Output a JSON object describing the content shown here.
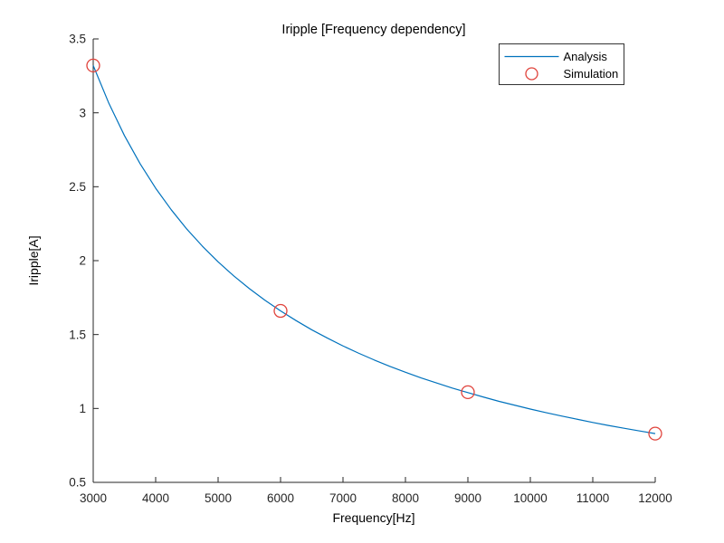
{
  "chart_data": {
    "type": "line",
    "title": "Iripple [Frequency dependency]",
    "xlabel": "Frequency[Hz]",
    "ylabel": "Iripple[A]",
    "xlim": [
      3000,
      12000
    ],
    "ylim": [
      0.5,
      3.5
    ],
    "grid": false,
    "background": "#ffffff",
    "axis_color": "#262626",
    "xticks": [
      3000,
      4000,
      5000,
      6000,
      7000,
      8000,
      9000,
      10000,
      11000,
      12000
    ],
    "xtick_labels": [
      "3000",
      "4000",
      "5000",
      "6000",
      "7000",
      "8000",
      "9000",
      "10000",
      "11000",
      "12000"
    ],
    "yticks": [
      0.5,
      1,
      1.5,
      2,
      2.5,
      3,
      3.5
    ],
    "ytick_labels": [
      "0.5",
      "1",
      "1.5",
      "2",
      "2.5",
      "3",
      "3.5"
    ],
    "legend": {
      "position": "top-right",
      "border_color": "#333333",
      "background": "#ffffff",
      "entries": [
        {
          "label": "Analysis",
          "type": "line",
          "color": "#0072BD"
        },
        {
          "label": "Simulation",
          "type": "circle",
          "color": "#E0433C"
        }
      ]
    },
    "series": [
      {
        "name": "Analysis",
        "type": "line",
        "color": "#0072BD",
        "x": [
          3000,
          3250,
          3500,
          3750,
          4000,
          4250,
          4500,
          4750,
          5000,
          5250,
          5500,
          5750,
          6000,
          6250,
          6500,
          6750,
          7000,
          7250,
          7500,
          7750,
          8000,
          8250,
          8500,
          8750,
          9000,
          9250,
          9500,
          9750,
          10000,
          10250,
          10500,
          10750,
          11000,
          11250,
          11500,
          11750,
          12000
        ],
        "y": [
          3.32,
          3.065,
          2.846,
          2.656,
          2.49,
          2.344,
          2.213,
          2.097,
          1.992,
          1.897,
          1.811,
          1.732,
          1.66,
          1.594,
          1.532,
          1.476,
          1.423,
          1.374,
          1.328,
          1.285,
          1.245,
          1.207,
          1.172,
          1.138,
          1.107,
          1.077,
          1.048,
          1.022,
          0.996,
          0.972,
          0.949,
          0.927,
          0.905,
          0.885,
          0.866,
          0.848,
          0.83
        ]
      },
      {
        "name": "Simulation",
        "type": "scatter",
        "marker": "circle",
        "color": "#E0433C",
        "x": [
          3000,
          6000,
          9000,
          12000
        ],
        "y": [
          3.32,
          1.66,
          1.11,
          0.83
        ]
      }
    ]
  }
}
